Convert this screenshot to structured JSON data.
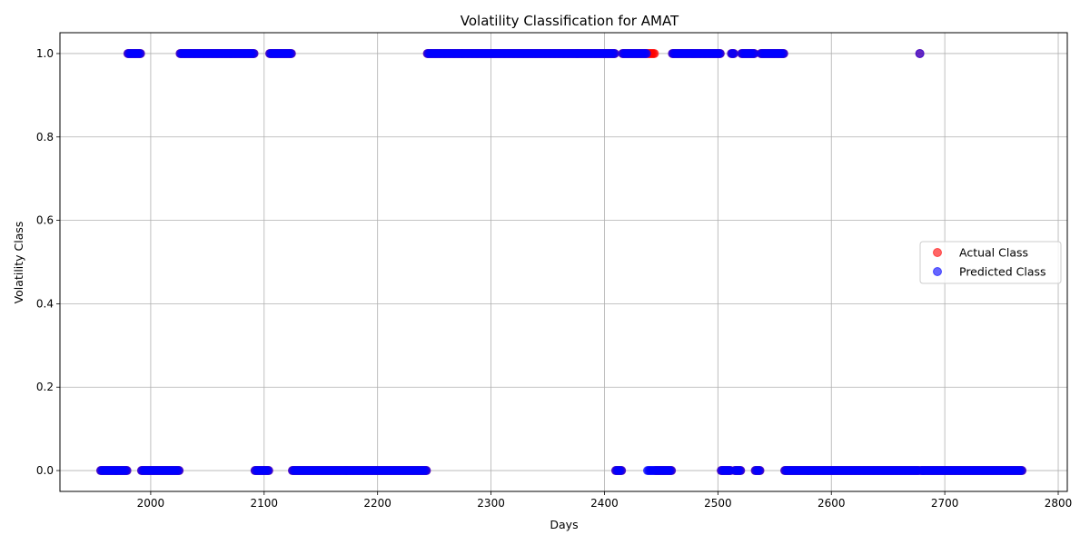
{
  "chart_data": {
    "type": "scatter",
    "title": "Volatility Classification for AMAT",
    "xlabel": "Days",
    "ylabel": "Volatility Class",
    "xlim": [
      1920,
      2808
    ],
    "ylim": [
      -0.05,
      1.05
    ],
    "xticks": [
      2000,
      2100,
      2200,
      2300,
      2400,
      2500,
      2600,
      2700,
      2800
    ],
    "yticks": [
      0.0,
      0.2,
      0.4,
      0.6,
      0.8,
      1.0
    ],
    "xtick_labels": [
      "2000",
      "2100",
      "2200",
      "2300",
      "2400",
      "2500",
      "2600",
      "2700",
      "2800"
    ],
    "ytick_labels": [
      "0.0",
      "0.2",
      "0.4",
      "0.6",
      "0.8",
      "1.0"
    ],
    "grid": true,
    "legend_position": "center-right",
    "x_start": 1956,
    "x_end": 2768,
    "series": [
      {
        "name": "Actual Class",
        "color": "#ff0000",
        "alpha": 0.6,
        "ones_ranges": [
          [
            1980,
            1991
          ],
          [
            2026,
            2091
          ],
          [
            2105,
            2124
          ],
          [
            2244,
            2409
          ],
          [
            2416,
            2444
          ],
          [
            2460,
            2502
          ],
          [
            2512,
            2514
          ],
          [
            2521,
            2532
          ],
          [
            2538,
            2558
          ],
          [
            2678,
            2678
          ]
        ]
      },
      {
        "name": "Predicted Class",
        "color": "#0000ff",
        "alpha": 0.6,
        "ones_ranges": [
          [
            1980,
            1991
          ],
          [
            2026,
            2091
          ],
          [
            2105,
            2124
          ],
          [
            2244,
            2409
          ],
          [
            2416,
            2437
          ],
          [
            2460,
            2502
          ],
          [
            2512,
            2514
          ],
          [
            2521,
            2532
          ],
          [
            2538,
            2558
          ],
          [
            2678,
            2678
          ]
        ]
      }
    ]
  }
}
